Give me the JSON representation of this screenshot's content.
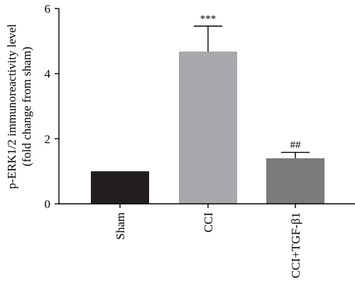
{
  "chart_data": {
    "type": "bar",
    "categories": [
      "Sham",
      "CCI",
      "CCI+TGF-β1"
    ],
    "values": [
      1.0,
      4.68,
      1.4
    ],
    "errors": [
      0.0,
      0.78,
      0.18
    ],
    "annotations": [
      "",
      "***",
      "##"
    ],
    "colors": [
      "#231f20",
      "#a7a9ac",
      "#7a7b7c"
    ],
    "ylabel_line1": "p-ERK1/2 immunoreactivity level",
    "ylabel_line2": "(fold change from sham)",
    "ylim": [
      0,
      6
    ],
    "yticks": [
      0,
      2,
      4,
      6
    ],
    "title": "",
    "xlabel": ""
  }
}
